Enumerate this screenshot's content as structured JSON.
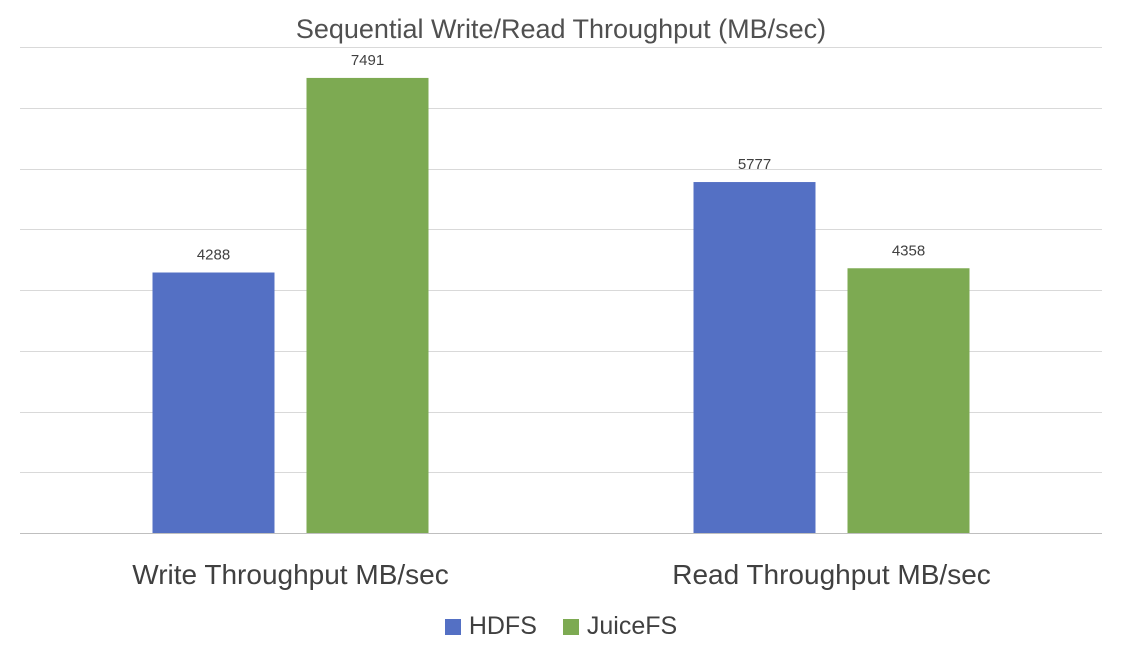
{
  "chart_data": {
    "type": "bar",
    "title": "Sequential Write/Read Throughput (MB/sec)",
    "categories": [
      "Write Throughput MB/sec",
      "Read Throughput MB/sec"
    ],
    "series": [
      {
        "name": "HDFS",
        "values": [
          4288,
          5777
        ],
        "color": "#5470C4"
      },
      {
        "name": "JuiceFS",
        "values": [
          7491,
          4358
        ],
        "color": "#7DAA52"
      }
    ],
    "ylim": [
      0,
      8000
    ],
    "grid": true,
    "legend": "bottom"
  }
}
